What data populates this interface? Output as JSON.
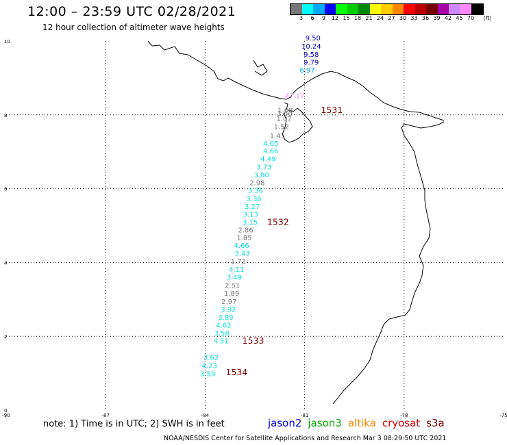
{
  "header": {
    "title": "12:00 – 23:59 UTC 02/28/2021",
    "subtitle": "12 hour collection of altimeter wave heights"
  },
  "colorbar": {
    "colors": [
      "#777777",
      "#00ffff",
      "#00aaff",
      "#0000ff",
      "#00ff00",
      "#00cc00",
      "#008800",
      "#ffff00",
      "#ffcc00",
      "#ff8800",
      "#ff0000",
      "#bb0000",
      "#770000",
      "#aa00aa",
      "#cc88ff",
      "#ff88ff",
      "#000000"
    ],
    "labels": [
      "3",
      "6",
      "9",
      "12",
      "15",
      "18",
      "21",
      "24",
      "27",
      "30",
      "33",
      "36",
      "39",
      "42",
      "45",
      "70"
    ],
    "unit": "(ft)"
  },
  "axes": {
    "lon_ticks": [
      "-90",
      "-87",
      "-84",
      "-81",
      "-78",
      "-75"
    ],
    "lat_ticks": [
      "0",
      "2",
      "4",
      "6",
      "8",
      "10"
    ]
  },
  "measurements": [
    {
      "value": "9.50",
      "lon": -80.75,
      "lat": 10.02,
      "color": "#0000cc"
    },
    {
      "value": "10.24",
      "lon": -80.8,
      "lat": 9.8,
      "color": "#0000cc"
    },
    {
      "value": "9.58",
      "lon": -80.8,
      "lat": 9.57,
      "color": "#0000cc"
    },
    {
      "value": "9.79",
      "lon": -80.8,
      "lat": 9.36,
      "color": "#0000cc"
    },
    {
      "value": "6.97",
      "lon": -80.92,
      "lat": 9.15,
      "color": "#00aaff"
    },
    {
      "value": "47.17",
      "lon": -81.3,
      "lat": 8.45,
      "color": "#ff88ff"
    },
    {
      "value": "1.68",
      "lon": -81.58,
      "lat": 8.06,
      "color": "#777777"
    },
    {
      "value": "1.60",
      "lon": -81.6,
      "lat": 7.98,
      "color": "#777777"
    },
    {
      "value": "1.07",
      "lon": -81.62,
      "lat": 7.83,
      "color": "#777777"
    },
    {
      "value": "1.52",
      "lon": -81.7,
      "lat": 7.62,
      "color": "#777777"
    },
    {
      "value": "1.43",
      "lon": -81.82,
      "lat": 7.37,
      "color": "#777777"
    },
    {
      "value": "4.05",
      "lon": -82.02,
      "lat": 7.16,
      "color": "#00dddd"
    },
    {
      "value": "4.66",
      "lon": -82.02,
      "lat": 6.96,
      "color": "#00dddd"
    },
    {
      "value": "4.49",
      "lon": -82.1,
      "lat": 6.74,
      "color": "#00dddd"
    },
    {
      "value": "3.73",
      "lon": -82.22,
      "lat": 6.52,
      "color": "#00dddd"
    },
    {
      "value": "3.80",
      "lon": -82.3,
      "lat": 6.31,
      "color": "#00dddd"
    },
    {
      "value": "2.98",
      "lon": -82.43,
      "lat": 6.09,
      "color": "#777777"
    },
    {
      "value": "3.36",
      "lon": -82.48,
      "lat": 5.89,
      "color": "#00dddd"
    },
    {
      "value": "3.36",
      "lon": -82.53,
      "lat": 5.67,
      "color": "#00dddd"
    },
    {
      "value": "3.27",
      "lon": -82.58,
      "lat": 5.45,
      "color": "#00dddd"
    },
    {
      "value": "3.13",
      "lon": -82.63,
      "lat": 5.24,
      "color": "#00dddd"
    },
    {
      "value": "3.15",
      "lon": -82.64,
      "lat": 5.03,
      "color": "#00dddd"
    },
    {
      "value": "2.86",
      "lon": -82.78,
      "lat": 4.81,
      "color": "#777777"
    },
    {
      "value": "1.85",
      "lon": -82.82,
      "lat": 4.61,
      "color": "#777777"
    },
    {
      "value": "4.66",
      "lon": -82.9,
      "lat": 4.4,
      "color": "#00dddd"
    },
    {
      "value": "3.43",
      "lon": -82.88,
      "lat": 4.18,
      "color": "#00dddd"
    },
    {
      "value": "1.72",
      "lon": -83.0,
      "lat": 3.97,
      "color": "#777777"
    },
    {
      "value": "4.11",
      "lon": -83.05,
      "lat": 3.75,
      "color": "#00dddd"
    },
    {
      "value": "3.49",
      "lon": -83.12,
      "lat": 3.53,
      "color": "#00dddd"
    },
    {
      "value": "2.51",
      "lon": -83.18,
      "lat": 3.31,
      "color": "#777777"
    },
    {
      "value": "1.89",
      "lon": -83.2,
      "lat": 3.1,
      "color": "#777777"
    },
    {
      "value": "2.97",
      "lon": -83.28,
      "lat": 2.88,
      "color": "#777777"
    },
    {
      "value": "3.92",
      "lon": -83.3,
      "lat": 2.66,
      "color": "#00dddd"
    },
    {
      "value": "3.89",
      "lon": -83.38,
      "lat": 2.45,
      "color": "#00dddd"
    },
    {
      "value": "4.62",
      "lon": -83.44,
      "lat": 2.24,
      "color": "#00dddd"
    },
    {
      "value": "3.58",
      "lon": -83.5,
      "lat": 2.02,
      "color": "#00dddd"
    },
    {
      "value": "4.51",
      "lon": -83.52,
      "lat": 1.81,
      "color": "#00dddd"
    },
    {
      "value": "3.62",
      "lon": -83.82,
      "lat": 1.36,
      "color": "#00dddd"
    },
    {
      "value": "4.23",
      "lon": -83.87,
      "lat": 1.14,
      "color": "#00dddd"
    },
    {
      "value": "3.59",
      "lon": -83.92,
      "lat": 0.92,
      "color": "#00dddd"
    }
  ],
  "passes": [
    {
      "label": "1531",
      "lon": -80.18,
      "lat": 8.05
    },
    {
      "label": "1532",
      "lon": -81.8,
      "lat": 5.02
    },
    {
      "label": "1533",
      "lon": -82.55,
      "lat": 1.8
    },
    {
      "label": "1534",
      "lon": -83.05,
      "lat": 0.95
    }
  ],
  "footer": {
    "note": "note:  1) Time is in UTC;  2) SWH is in feet",
    "legend": [
      {
        "name": "jason2",
        "color": "#0000ee"
      },
      {
        "name": "jason3",
        "color": "#00aa00"
      },
      {
        "name": "altika",
        "color": "#ff8800"
      },
      {
        "name": "cryosat",
        "color": "#dd0000"
      },
      {
        "name": "s3a",
        "color": "#7a0000"
      }
    ],
    "credit": "NOAA/NESDIS Center for Satellite Applications and Research    Mar  3 08:29:50 UTC 2021"
  }
}
